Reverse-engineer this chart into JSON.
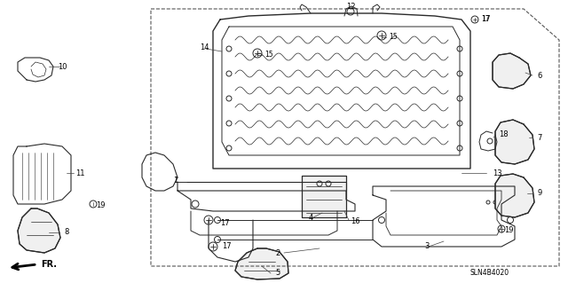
{
  "background_color": "#ffffff",
  "diagram_code": "SLN4B4020",
  "figsize": [
    6.4,
    3.19
  ],
  "dpi": 100,
  "image_data": "target_reproduction"
}
